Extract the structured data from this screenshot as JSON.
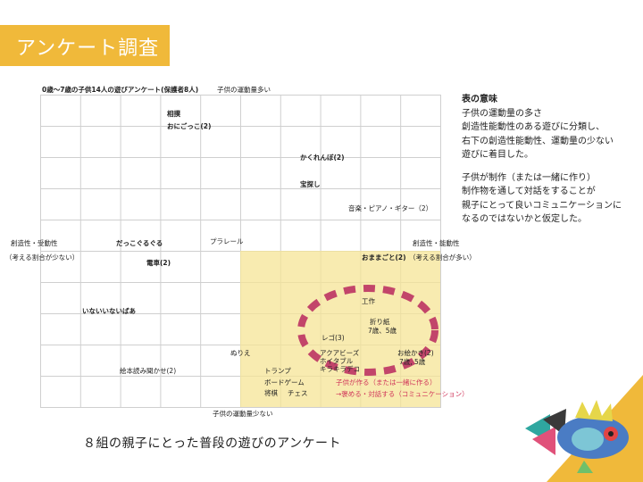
{
  "slide_title": "アンケート調査",
  "table": {
    "heading": "0歳〜7歳の子供14人の遊びアンケート(保護者8人)",
    "axis_top": "子供の運動量多い",
    "axis_bottom": "子供の運動量少ない",
    "axis_left_1": "創造性・受動性",
    "axis_left_2": "（考える割合が少ない）",
    "axis_right_1": "創造性・能動性",
    "axis_right_2": "（考える割合が多い）",
    "items": {
      "sumo": "相撲",
      "onigokko": "おにごっこ(2)",
      "kakurenbo": "かくれんぼ(2)",
      "takarasagashi": "宝探し",
      "ongaku": "音楽・ピアノ・ギター（2）",
      "dakko": "だっこぐるぐる",
      "plarail": "プラレール",
      "omamagoto": "おままごと(2)",
      "densha": "電車(2)",
      "kousaku": "工作",
      "inaiinai": "いないいないばあ",
      "origami_1": "折り紙",
      "origami_2": "7歳、5歳",
      "lego": "レゴ(3)",
      "nurie": "ぬりえ",
      "aqua_1": "アクアビーズ",
      "aqua_2": "ホイタブル",
      "aqua_3": "キラキラデコ",
      "oekaki_1": "お絵かき(2)",
      "oekaki_2": "7歳, 5歳",
      "ehon": "絵本読み聞かせ(2)",
      "trump": "トランプ",
      "boardgame": "ボードゲーム",
      "shogi": "将棋",
      "chess": "チェス",
      "note_1": "子供が作る（または一緒に作る）",
      "note_2": "→褒める・対話する（コミュニケーション）"
    }
  },
  "side_text": {
    "heading": "表の意味",
    "p1": [
      "子供の運動量の多さ",
      "創造性能動性のある遊びに分類し、",
      "右下の創造性能動性、運動量の少ない",
      "遊びに着目した。"
    ],
    "p2": [
      "子供が制作（または一緒に作り）",
      "制作物を通して対話をすることが",
      "親子にとって良いコミュニケーションに",
      "なるのではないかと仮定した。"
    ]
  },
  "caption": "８組の親子にとった普段の遊びのアンケート",
  "colors": {
    "accent": "#f0b93a",
    "highlight": "#f6e496",
    "ring": "#c2456a",
    "note": "#d0355a"
  },
  "decoration": "colorful-fish-illustration"
}
